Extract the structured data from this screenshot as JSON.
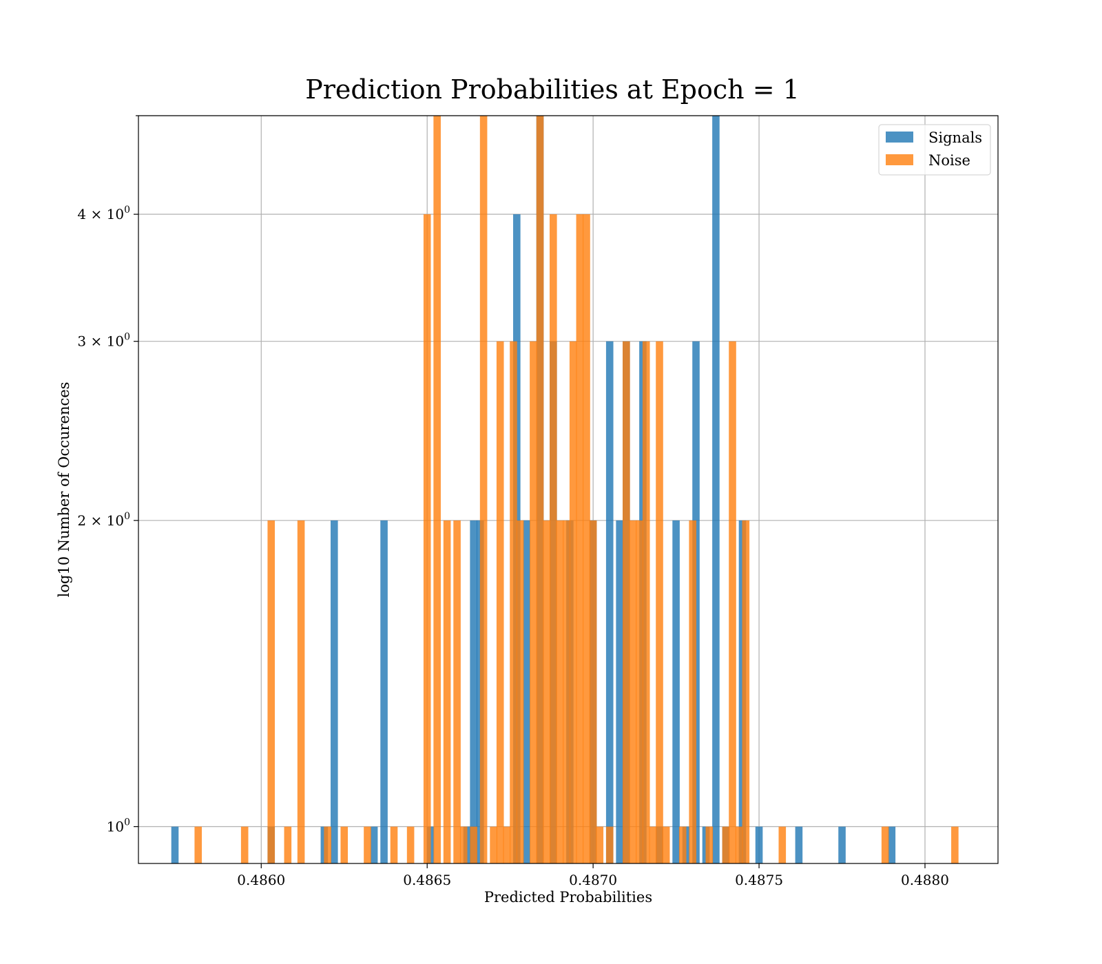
{
  "chart_data": {
    "type": "bar",
    "title": "Prediction Probabilities at Epoch = 1",
    "xlabel": "Predicted Probabilities",
    "ylabel": "log10 Number of Occurences",
    "xlim": [
      0.48563,
      0.48822
    ],
    "ylim": [
      0.92,
      5.0
    ],
    "y_scale": "log",
    "grid": true,
    "legend_position": "top-right",
    "x_ticks": [
      {
        "value": 0.486,
        "label": "0.4860"
      },
      {
        "value": 0.4865,
        "label": "0.4865"
      },
      {
        "value": 0.487,
        "label": "0.4870"
      },
      {
        "value": 0.4875,
        "label": "0.4875"
      },
      {
        "value": 0.488,
        "label": "0.4880"
      }
    ],
    "y_ticks": [
      {
        "value": 1,
        "base": "10",
        "exp": "0"
      },
      {
        "value": 2,
        "base": "2 × 10",
        "exp": "0"
      },
      {
        "value": 3,
        "base": "3 × 10",
        "exp": "0"
      },
      {
        "value": 4,
        "base": "4 × 10",
        "exp": "0"
      }
    ],
    "y_extra_gridlines": [
      5
    ],
    "bin_width": 2.2e-05,
    "series": [
      {
        "name": "Signals",
        "color": "#1f77b4",
        "x": [
          0.48574,
          0.48603,
          0.48619,
          0.48622,
          0.48634,
          0.48637,
          0.48651,
          0.48662,
          0.48664,
          0.48666,
          0.48677,
          0.4868,
          0.48684,
          0.48688,
          0.48693,
          0.487,
          0.48705,
          0.48708,
          0.4871,
          0.48715,
          0.4872,
          0.48725,
          0.48728,
          0.48731,
          0.48734,
          0.48737,
          0.4874,
          0.48745,
          0.4875,
          0.48762,
          0.48775,
          0.4879
        ],
        "values": [
          1,
          1,
          1,
          2,
          1,
          2,
          1,
          1,
          2,
          2,
          4,
          2,
          5,
          3,
          2,
          2,
          3,
          2,
          3,
          3,
          1,
          2,
          1,
          3,
          1,
          5,
          1,
          2,
          1,
          1,
          1,
          1
        ]
      },
      {
        "name": "Noise",
        "color": "#ff7f0e",
        "x": [
          0.48581,
          0.48595,
          0.48603,
          0.48608,
          0.48612,
          0.4862,
          0.48625,
          0.48632,
          0.4864,
          0.48645,
          0.4865,
          0.48653,
          0.48656,
          0.48659,
          0.48661,
          0.48664,
          0.48667,
          0.4867,
          0.48672,
          0.48674,
          0.48676,
          0.48678,
          0.48682,
          0.48684,
          0.48686,
          0.48688,
          0.4869,
          0.48692,
          0.48694,
          0.48696,
          0.48698,
          0.487,
          0.48702,
          0.48705,
          0.4871,
          0.48712,
          0.48714,
          0.48716,
          0.48718,
          0.4872,
          0.48722,
          0.48727,
          0.4873,
          0.48735,
          0.4874,
          0.48742,
          0.48744,
          0.48746,
          0.48757,
          0.48788,
          0.48809
        ],
        "values": [
          1,
          1,
          2,
          1,
          2,
          1,
          1,
          1,
          1,
          1,
          4,
          5,
          2,
          2,
          1,
          1,
          5,
          1,
          3,
          1,
          3,
          2,
          3,
          5,
          2,
          4,
          2,
          2,
          3,
          4,
          4,
          2,
          1,
          1,
          3,
          2,
          2,
          3,
          1,
          3,
          1,
          1,
          2,
          1,
          1,
          3,
          1,
          2,
          1,
          1,
          1
        ]
      }
    ]
  }
}
